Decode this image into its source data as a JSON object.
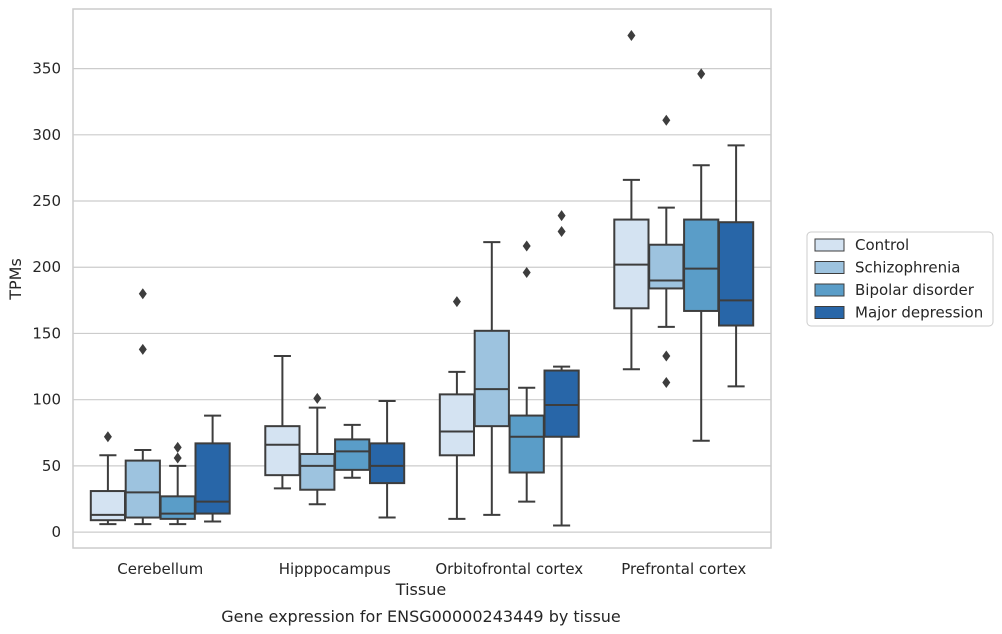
{
  "chart_data": {
    "type": "box",
    "title": "",
    "caption": "Gene expression for ENSG00000243449 by tissue",
    "xlabel": "Tissue",
    "ylabel": "TPMs",
    "ylim": [
      -12,
      395
    ],
    "yticks": [
      0,
      50,
      100,
      150,
      200,
      250,
      300,
      350
    ],
    "grid": "horizontal",
    "legend_position": "right",
    "categories": [
      "Cerebellum",
      "Hipppocampus",
      "Orbitofrontal cortex",
      "Prefrontal cortex"
    ],
    "series": [
      {
        "name": "Control",
        "color": "#d4e3f2",
        "boxes": [
          {
            "whislo": 6,
            "q1": 9,
            "med": 13,
            "q3": 31,
            "whishi": 58,
            "fliers": [
              72
            ]
          },
          {
            "whislo": 33,
            "q1": 43,
            "med": 66,
            "q3": 80,
            "whishi": 133,
            "fliers": []
          },
          {
            "whislo": 10,
            "q1": 58,
            "med": 76,
            "q3": 104,
            "whishi": 121,
            "fliers": [
              174
            ]
          },
          {
            "whislo": 123,
            "q1": 169,
            "med": 202,
            "q3": 236,
            "whishi": 266,
            "fliers": [
              375
            ]
          }
        ]
      },
      {
        "name": "Schizophrenia",
        "color": "#9dc3df",
        "boxes": [
          {
            "whislo": 6,
            "q1": 11,
            "med": 30,
            "q3": 54,
            "whishi": 62,
            "fliers": [
              138,
              180
            ]
          },
          {
            "whislo": 21,
            "q1": 32,
            "med": 50,
            "q3": 59,
            "whishi": 94,
            "fliers": [
              101
            ]
          },
          {
            "whislo": 13,
            "q1": 80,
            "med": 108,
            "q3": 152,
            "whishi": 219,
            "fliers": []
          },
          {
            "whislo": 155,
            "q1": 184,
            "med": 190,
            "q3": 217,
            "whishi": 245,
            "fliers": [
              113,
              133,
              311
            ]
          }
        ]
      },
      {
        "name": "Bipolar disorder",
        "color": "#5a9dc8",
        "boxes": [
          {
            "whislo": 6,
            "q1": 10,
            "med": 14,
            "q3": 27,
            "whishi": 50,
            "fliers": [
              56,
              64
            ]
          },
          {
            "whislo": 41,
            "q1": 47,
            "med": 61,
            "q3": 70,
            "whishi": 81,
            "fliers": []
          },
          {
            "whislo": 23,
            "q1": 45,
            "med": 72,
            "q3": 88,
            "whishi": 109,
            "fliers": [
              196,
              216
            ]
          },
          {
            "whislo": 69,
            "q1": 167,
            "med": 199,
            "q3": 236,
            "whishi": 277,
            "fliers": [
              346
            ]
          }
        ]
      },
      {
        "name": "Major depression",
        "color": "#2866a8",
        "boxes": [
          {
            "whislo": 8,
            "q1": 14,
            "med": 23,
            "q3": 67,
            "whishi": 88,
            "fliers": []
          },
          {
            "whislo": 11,
            "q1": 37,
            "med": 50,
            "q3": 67,
            "whishi": 99,
            "fliers": []
          },
          {
            "whislo": 5,
            "q1": 72,
            "med": 96,
            "q3": 122,
            "whishi": 125,
            "fliers": [
              227,
              239
            ]
          },
          {
            "whislo": 110,
            "q1": 156,
            "med": 175,
            "q3": 234,
            "whishi": 292,
            "fliers": []
          }
        ]
      }
    ]
  }
}
